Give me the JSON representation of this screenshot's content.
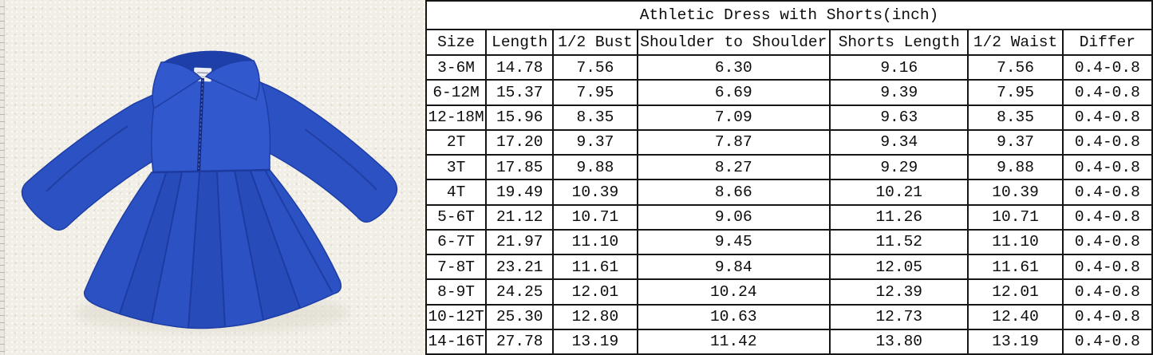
{
  "photo": {
    "description": "Royal blue long-sleeve athletic dress with polo collar, front zipper and pleated skirt, laid flat on cream fleece background with ruler strip at left edge",
    "colors": {
      "dress_blue": "#2b51c3",
      "dress_blue_light": "#3158cd",
      "dress_blue_dark": "#1e3ea6",
      "pleat_line": "#1c3aa0",
      "zipper_dark": "#14297a",
      "collar_inner": "#1f3fa8",
      "tag_white": "#eceef3",
      "photo_background": "#f1eee6",
      "shadow": "#dcd8cc"
    }
  },
  "table": {
    "title": "Athletic Dress with Shorts(inch)",
    "columns": [
      "Size",
      "Length",
      "1/2 Bust",
      "Shoulder to Shoulder",
      "Shorts Length",
      "1/2 Waist",
      "Differ"
    ],
    "rows": [
      [
        "3-6M",
        "14.78",
        "7.56",
        "6.30",
        "9.16",
        "7.56",
        "0.4-0.8"
      ],
      [
        "6-12M",
        "15.37",
        "7.95",
        "6.69",
        "9.39",
        "7.95",
        "0.4-0.8"
      ],
      [
        "12-18M",
        "15.96",
        "8.35",
        "7.09",
        "9.63",
        "8.35",
        "0.4-0.8"
      ],
      [
        "2T",
        "17.20",
        "9.37",
        "7.87",
        "9.34",
        "9.37",
        "0.4-0.8"
      ],
      [
        "3T",
        "17.85",
        "9.88",
        "8.27",
        "9.29",
        "9.88",
        "0.4-0.8"
      ],
      [
        "4T",
        "19.49",
        "10.39",
        "8.66",
        "10.21",
        "10.39",
        "0.4-0.8"
      ],
      [
        "5-6T",
        "21.12",
        "10.71",
        "9.06",
        "11.26",
        "10.71",
        "0.4-0.8"
      ],
      [
        "6-7T",
        "21.97",
        "11.10",
        "9.45",
        "11.52",
        "11.10",
        "0.4-0.8"
      ],
      [
        "7-8T",
        "23.21",
        "11.61",
        "9.84",
        "12.05",
        "11.61",
        "0.4-0.8"
      ],
      [
        "8-9T",
        "24.25",
        "12.01",
        "10.24",
        "12.39",
        "12.01",
        "0.4-0.8"
      ],
      [
        "10-12T",
        "25.30",
        "12.80",
        "10.63",
        "12.73",
        "12.40",
        "0.4-0.8"
      ],
      [
        "14-16T",
        "27.78",
        "13.19",
        "11.42",
        "13.80",
        "13.19",
        "0.4-0.8"
      ]
    ],
    "border_color": "#161616"
  }
}
